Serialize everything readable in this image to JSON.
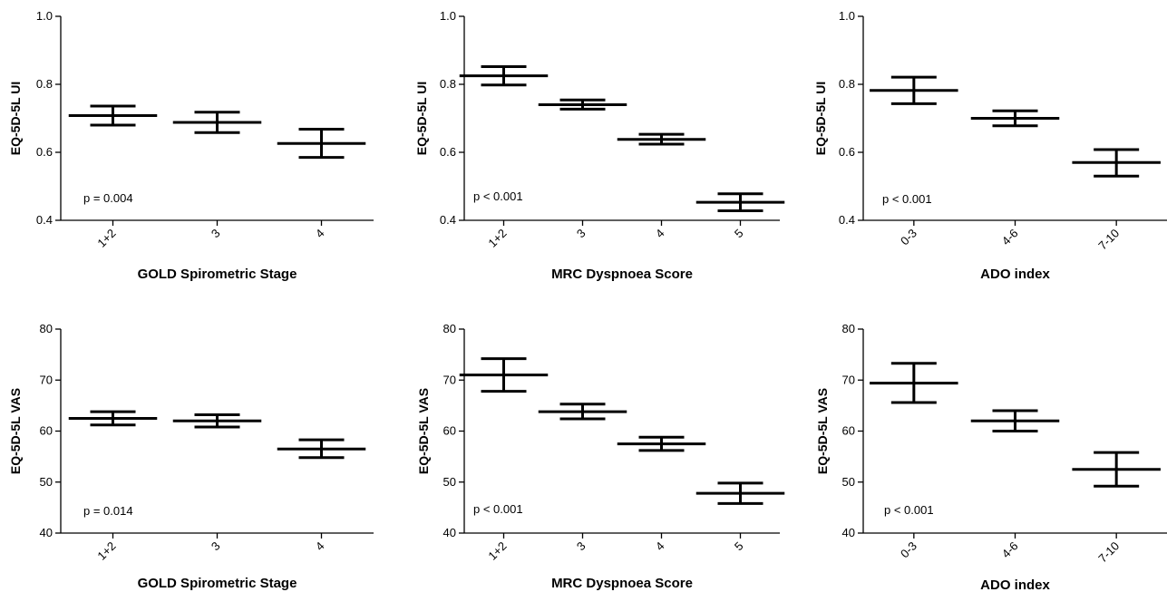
{
  "chart_data": [
    {
      "type": "scatter",
      "subtype": "mean-with-error-bars",
      "xlabel": "GOLD Spirometric Stage",
      "ylabel": "EQ-5D-5L UI",
      "ylim": [
        0.4,
        1.0
      ],
      "yticks": [
        "0.4",
        "0.6",
        "0.8",
        "1.0"
      ],
      "categories": [
        "1+2",
        "3",
        "4"
      ],
      "mean": [
        0.708,
        0.688,
        0.626
      ],
      "lower": [
        0.68,
        0.658,
        0.585
      ],
      "upper": [
        0.736,
        0.718,
        0.668
      ],
      "annotation": "p = 0.004"
    },
    {
      "type": "scatter",
      "subtype": "mean-with-error-bars",
      "xlabel": "MRC Dyspnoea Score",
      "ylabel": "EQ-5D-5L UI",
      "ylim": [
        0.4,
        1.0
      ],
      "yticks": [
        "0.4",
        "0.6",
        "0.8",
        "1.0"
      ],
      "categories": [
        "1+2",
        "3",
        "4",
        "5"
      ],
      "mean": [
        0.825,
        0.74,
        0.638,
        0.453
      ],
      "lower": [
        0.798,
        0.727,
        0.624,
        0.428
      ],
      "upper": [
        0.852,
        0.754,
        0.653,
        0.478
      ],
      "annotation": "p < 0.001"
    },
    {
      "type": "scatter",
      "subtype": "mean-with-error-bars",
      "xlabel": "ADO index",
      "ylabel": "EQ-5D-5L UI",
      "ylim": [
        0.4,
        1.0
      ],
      "yticks": [
        "0.4",
        "0.6",
        "0.8",
        "1.0"
      ],
      "categories": [
        "0-3",
        "4-6",
        "7-10"
      ],
      "mean": [
        0.782,
        0.7,
        0.57
      ],
      "lower": [
        0.743,
        0.678,
        0.53
      ],
      "upper": [
        0.821,
        0.722,
        0.608
      ],
      "annotation": "p < 0.001"
    },
    {
      "type": "scatter",
      "subtype": "mean-with-error-bars",
      "xlabel": "GOLD Spirometric Stage",
      "ylabel": "EQ-5D-5L VAS",
      "ylim": [
        40,
        80
      ],
      "yticks": [
        "40",
        "50",
        "60",
        "70",
        "80"
      ],
      "categories": [
        "1+2",
        "3",
        "4"
      ],
      "mean": [
        62.5,
        62.0,
        56.5
      ],
      "lower": [
        61.2,
        60.8,
        54.8
      ],
      "upper": [
        63.8,
        63.2,
        58.3
      ],
      "annotation": "p = 0.014"
    },
    {
      "type": "scatter",
      "subtype": "mean-with-error-bars",
      "xlabel": "MRC Dyspnoea Score",
      "ylabel": "EQ-5D-5L  VAS",
      "ylim": [
        40,
        80
      ],
      "yticks": [
        "40",
        "50",
        "60",
        "70",
        "80"
      ],
      "categories": [
        "1+2",
        "3",
        "4",
        "5"
      ],
      "mean": [
        71.0,
        63.8,
        57.5,
        47.8
      ],
      "lower": [
        67.8,
        62.4,
        56.2,
        45.8
      ],
      "upper": [
        74.2,
        65.3,
        58.8,
        49.8
      ],
      "annotation": "p < 0.001"
    },
    {
      "type": "scatter",
      "subtype": "mean-with-error-bars",
      "xlabel": "ADO index",
      "ylabel": "EQ-5D-5L VAS",
      "ylim": [
        40,
        80
      ],
      "yticks": [
        "40",
        "50",
        "60",
        "70",
        "80"
      ],
      "categories": [
        "0-3",
        "4-6",
        "7-10"
      ],
      "mean": [
        69.4,
        62.0,
        52.5
      ],
      "lower": [
        65.6,
        60.0,
        49.2
      ],
      "upper": [
        73.3,
        64.0,
        55.8
      ],
      "annotation": "p < 0.001"
    }
  ]
}
